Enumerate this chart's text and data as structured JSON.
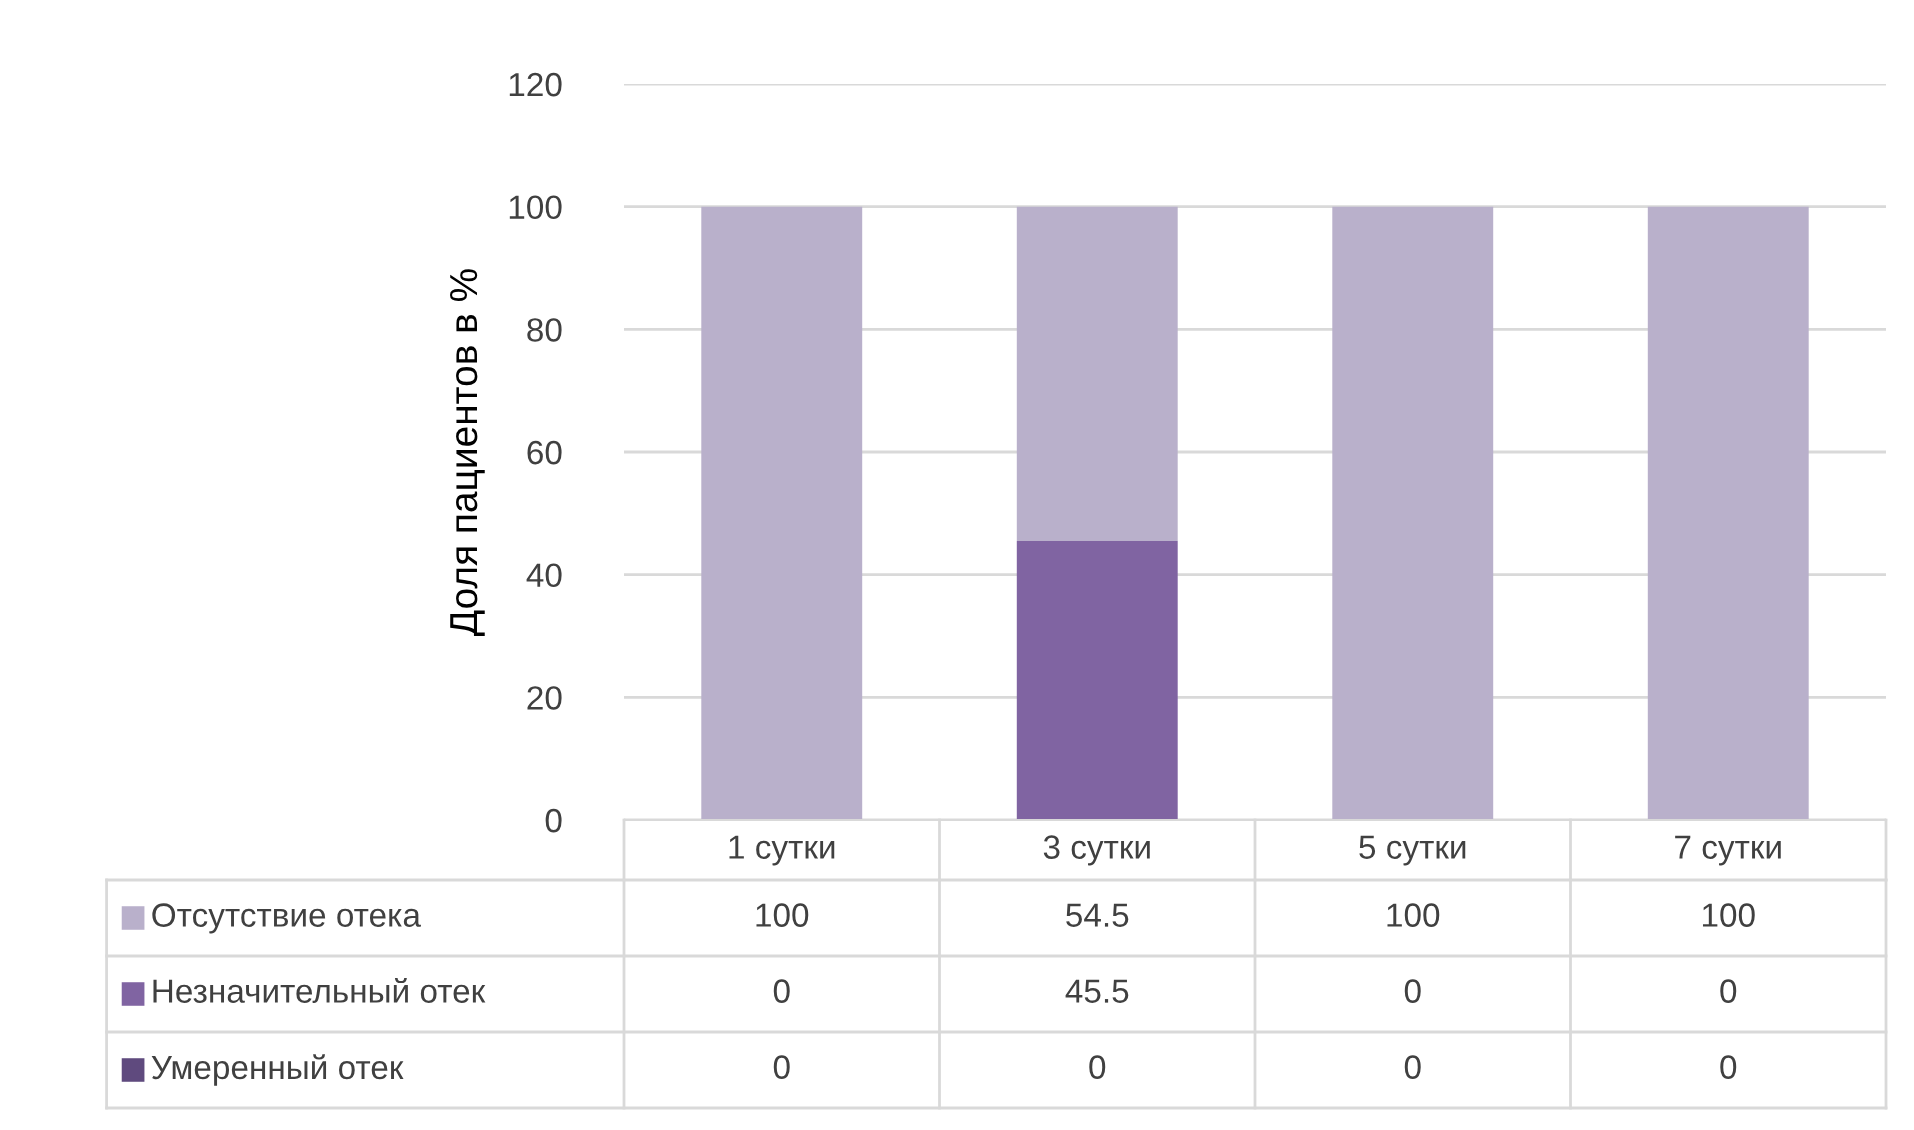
{
  "chart_data": {
    "type": "bar",
    "stacked": true,
    "ylabel": "Доля пациентов в %",
    "categories": [
      "1 сутки",
      "3 сутки",
      "5 сутки",
      "7 сутки"
    ],
    "series": [
      {
        "name": "Умеренный отек",
        "color": "#5f4a7e",
        "values": [
          0,
          0,
          0,
          0
        ]
      },
      {
        "name": "Незначительный отек",
        "color": "#8064a2",
        "values": [
          0,
          45.5,
          0,
          0
        ]
      },
      {
        "name": "Отсутствие отека",
        "color": "#b9b0cb",
        "values": [
          100,
          54.5,
          100,
          100
        ]
      }
    ],
    "ylim": [
      0,
      120
    ],
    "yticks": [
      0,
      20,
      40,
      60,
      80,
      100,
      120
    ],
    "grid": "y",
    "legend": "bottom",
    "data_labels": true
  }
}
